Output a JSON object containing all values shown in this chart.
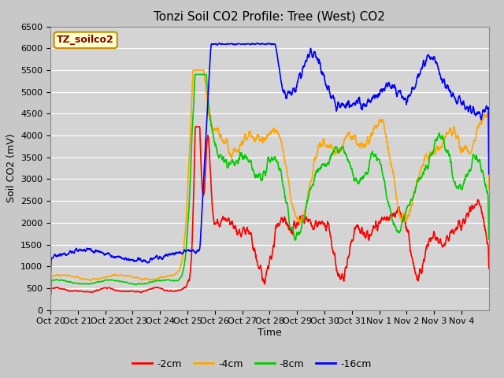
{
  "title": "Tonzi Soil CO2 Profile: Tree (West) CO2",
  "ylabel": "Soil CO2 (mV)",
  "xlabel": "Time",
  "watermark_text": "TZ_soilco2",
  "ylim": [
    0,
    6500
  ],
  "plot_bg_color": "#d8d8d8",
  "legend": [
    "-2cm",
    "-4cm",
    "-8cm",
    "-16cm"
  ],
  "legend_colors": [
    "#ff0000",
    "#ffa500",
    "#00cc00",
    "#0000ff"
  ],
  "x_tick_labels": [
    "Oct 20",
    "Oct 21",
    "Oct 22",
    "Oct 23",
    "Oct 24",
    "Oct 25",
    "Oct 26",
    "Oct 27",
    "Oct 28",
    "Oct 29",
    "Oct 30",
    "Oct 31",
    "Nov 1",
    "Nov 2",
    "Nov 3",
    "Nov 4"
  ],
  "title_fontsize": 11,
  "axis_label_fontsize": 9,
  "tick_fontsize": 8,
  "watermark_fontsize": 9
}
